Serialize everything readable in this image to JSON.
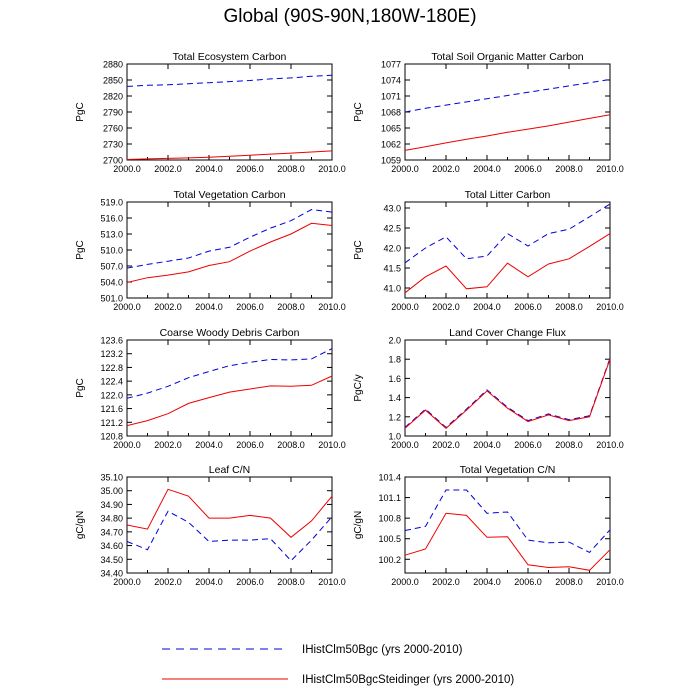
{
  "title": "Global (90S-90N,180W-180E)",
  "legend_entries": [
    {
      "label": "IHistClm50Bgc (yrs 2000-2010)",
      "color": "#0000dd",
      "dashed": true
    },
    {
      "label": "IHistClm50BgcSteidinger (yrs 2000-2010)",
      "color": "#ee0000",
      "dashed": false
    }
  ],
  "chart_data": [
    {
      "type": "line",
      "title": "Total Ecosystem Carbon",
      "ylabel": "PgC",
      "xlim": [
        2000,
        2010
      ],
      "ylim": [
        2700,
        2880
      ],
      "xticks": [
        "2000.0",
        "2002.0",
        "2004.0",
        "2006.0",
        "2008.0",
        "2010.0"
      ],
      "yticks": [
        "2700",
        "2730",
        "2760",
        "2790",
        "2820",
        "2850",
        "2880"
      ],
      "x": [
        2000,
        2001,
        2002,
        2003,
        2004,
        2005,
        2006,
        2007,
        2008,
        2009,
        2010
      ],
      "series": [
        {
          "name": "IHistClm50Bgc (yrs 2000-2010)",
          "values": [
            2838,
            2840,
            2841,
            2843,
            2845,
            2847,
            2849,
            2852,
            2854,
            2857,
            2859
          ]
        },
        {
          "name": "IHistClm50BgcSteidinger (yrs 2000-2010)",
          "values": [
            2701,
            2702,
            2703,
            2704,
            2705,
            2707,
            2709,
            2711,
            2713,
            2715,
            2717
          ]
        }
      ]
    },
    {
      "type": "line",
      "title": "Total Soil Organic Matter Carbon",
      "ylabel": "PgC",
      "xlim": [
        2000,
        2010
      ],
      "ylim": [
        1059,
        1077
      ],
      "xticks": [
        "2000.0",
        "2002.0",
        "2004.0",
        "2006.0",
        "2008.0",
        "2010.0"
      ],
      "yticks": [
        "1059",
        "1062",
        "1065",
        "1068",
        "1071",
        "1074",
        "1077"
      ],
      "x": [
        2000,
        2001,
        2002,
        2003,
        2004,
        2005,
        2006,
        2007,
        2008,
        2009,
        2010
      ],
      "series": [
        {
          "name": "IHistClm50Bgc (yrs 2000-2010)",
          "values": [
            1068.0,
            1068.7,
            1069.3,
            1069.9,
            1070.5,
            1071.1,
            1071.7,
            1072.3,
            1072.9,
            1073.5,
            1074.1
          ]
        },
        {
          "name": "IHistClm50BgcSteidinger (yrs 2000-2010)",
          "values": [
            1060.8,
            1061.5,
            1062.2,
            1062.9,
            1063.5,
            1064.2,
            1064.8,
            1065.4,
            1066.1,
            1066.8,
            1067.5
          ]
        }
      ]
    },
    {
      "type": "line",
      "title": "Total Vegetation Carbon",
      "ylabel": "PgC",
      "xlim": [
        2000,
        2010
      ],
      "ylim": [
        501,
        519
      ],
      "xticks": [
        "2000.0",
        "2002.0",
        "2004.0",
        "2006.0",
        "2008.0",
        "2010.0"
      ],
      "yticks": [
        "501.0",
        "504.0",
        "507.0",
        "510.0",
        "513.0",
        "516.0",
        "519.0"
      ],
      "x": [
        2000,
        2001,
        2002,
        2003,
        2004,
        2005,
        2006,
        2007,
        2008,
        2009,
        2010
      ],
      "series": [
        {
          "name": "IHistClm50Bgc (yrs 2000-2010)",
          "values": [
            506.6,
            507.3,
            507.9,
            508.5,
            509.8,
            510.5,
            512.4,
            514.1,
            515.5,
            517.6,
            517.1
          ]
        },
        {
          "name": "IHistClm50BgcSteidinger (yrs 2000-2010)",
          "values": [
            503.9,
            504.8,
            505.3,
            505.9,
            507.1,
            507.8,
            509.8,
            511.5,
            513.0,
            515.0,
            514.6
          ]
        }
      ]
    },
    {
      "type": "line",
      "title": "Total Litter Carbon",
      "ylabel": "PgC",
      "xlim": [
        2000,
        2010
      ],
      "ylim": [
        40.75,
        43.15
      ],
      "xticks": [
        "2000.0",
        "2002.0",
        "2004.0",
        "2006.0",
        "2008.0",
        "2010.0"
      ],
      "yticks": [
        "41.0",
        "41.5",
        "42.0",
        "42.5",
        "43.0"
      ],
      "ytick_values": [
        41.0,
        41.5,
        42.0,
        42.5,
        43.0
      ],
      "x": [
        2000,
        2001,
        2002,
        2003,
        2004,
        2005,
        2006,
        2007,
        2008,
        2009,
        2010
      ],
      "series": [
        {
          "name": "IHistClm50Bgc (yrs 2000-2010)",
          "values": [
            41.63,
            42.0,
            42.28,
            41.73,
            41.8,
            42.36,
            42.05,
            42.36,
            42.47,
            42.78,
            43.1
          ]
        },
        {
          "name": "IHistClm50BgcSteidinger (yrs 2000-2010)",
          "values": [
            40.88,
            41.28,
            41.55,
            40.98,
            41.03,
            41.62,
            41.28,
            41.6,
            41.73,
            42.04,
            42.36
          ]
        }
      ]
    },
    {
      "type": "line",
      "title": "Coarse Woody Debris Carbon",
      "ylabel": "PgC",
      "xlim": [
        2000,
        2010
      ],
      "ylim": [
        120.8,
        123.6
      ],
      "xticks": [
        "2000.0",
        "2002.0",
        "2004.0",
        "2006.0",
        "2008.0",
        "2010.0"
      ],
      "yticks": [
        "120.8",
        "121.2",
        "121.6",
        "122.0",
        "122.4",
        "122.8",
        "123.2",
        "123.6"
      ],
      "x": [
        2000,
        2001,
        2002,
        2003,
        2004,
        2005,
        2006,
        2007,
        2008,
        2009,
        2010
      ],
      "series": [
        {
          "name": "IHistClm50Bgc (yrs 2000-2010)",
          "values": [
            121.9,
            122.05,
            122.25,
            122.5,
            122.68,
            122.85,
            122.95,
            123.03,
            123.02,
            123.05,
            123.35
          ]
        },
        {
          "name": "IHistClm50BgcSteidinger (yrs 2000-2010)",
          "values": [
            121.1,
            121.25,
            121.45,
            121.75,
            121.92,
            122.08,
            122.17,
            122.26,
            122.25,
            122.28,
            122.55
          ]
        }
      ]
    },
    {
      "type": "line",
      "title": "Land Cover Change Flux",
      "ylabel": "PgC/y",
      "xlim": [
        2000,
        2010
      ],
      "ylim": [
        1.0,
        2.0
      ],
      "xticks": [
        "2000.0",
        "2002.0",
        "2004.0",
        "2006.0",
        "2008.0",
        "2010.0"
      ],
      "yticks": [
        "1.0",
        "1.2",
        "1.4",
        "1.6",
        "1.8",
        "2.0"
      ],
      "x": [
        2000,
        2001,
        2002,
        2003,
        2004,
        2005,
        2006,
        2007,
        2008,
        2009,
        2010
      ],
      "series": [
        {
          "name": "IHistClm50Bgc (yrs 2000-2010)",
          "values": [
            1.09,
            1.28,
            1.09,
            1.28,
            1.48,
            1.3,
            1.16,
            1.23,
            1.17,
            1.21,
            1.81
          ]
        },
        {
          "name": "IHistClm50BgcSteidinger (yrs 2000-2010)",
          "values": [
            1.08,
            1.27,
            1.08,
            1.27,
            1.47,
            1.29,
            1.15,
            1.22,
            1.16,
            1.2,
            1.8
          ]
        }
      ]
    },
    {
      "type": "line",
      "title": "Leaf C/N",
      "ylabel": "gC/gN",
      "xlim": [
        2000,
        2010
      ],
      "ylim": [
        34.4,
        35.1
      ],
      "xticks": [
        "2000.0",
        "2002.0",
        "2004.0",
        "2006.0",
        "2008.0",
        "2010.0"
      ],
      "yticks": [
        "34.40",
        "34.50",
        "34.60",
        "34.70",
        "34.80",
        "34.90",
        "35.00",
        "35.10"
      ],
      "x": [
        2000,
        2001,
        2002,
        2003,
        2004,
        2005,
        2006,
        2007,
        2008,
        2009,
        2010
      ],
      "series": [
        {
          "name": "IHistClm50Bgc (yrs 2000-2010)",
          "values": [
            34.63,
            34.57,
            34.85,
            34.77,
            34.63,
            34.64,
            34.64,
            34.65,
            34.49,
            34.64,
            34.81
          ]
        },
        {
          "name": "IHistClm50BgcSteidinger (yrs 2000-2010)",
          "values": [
            34.75,
            34.72,
            35.01,
            34.96,
            34.8,
            34.8,
            34.82,
            34.8,
            34.66,
            34.78,
            34.96
          ]
        }
      ]
    },
    {
      "type": "line",
      "title": "Total Vegetation C/N",
      "ylabel": "gC/gN",
      "xlim": [
        2000,
        2010
      ],
      "ylim": [
        100.0,
        101.4
      ],
      "xticks": [
        "2000.0",
        "2002.0",
        "2004.0",
        "2006.0",
        "2008.0",
        "2010.0"
      ],
      "yticks": [
        "100.2",
        "100.5",
        "100.8",
        "101.1",
        "101.4"
      ],
      "ytick_values": [
        100.2,
        100.5,
        100.8,
        101.1,
        101.4
      ],
      "x": [
        2000,
        2001,
        2002,
        2003,
        2004,
        2005,
        2006,
        2007,
        2008,
        2009,
        2010
      ],
      "series": [
        {
          "name": "IHistClm50Bgc (yrs 2000-2010)",
          "values": [
            100.62,
            100.68,
            101.21,
            101.21,
            100.87,
            100.89,
            100.48,
            100.44,
            100.45,
            100.3,
            100.63
          ]
        },
        {
          "name": "IHistClm50BgcSteidinger (yrs 2000-2010)",
          "values": [
            100.26,
            100.35,
            100.87,
            100.84,
            100.52,
            100.53,
            100.12,
            100.08,
            100.09,
            100.04,
            100.34
          ]
        }
      ]
    }
  ]
}
